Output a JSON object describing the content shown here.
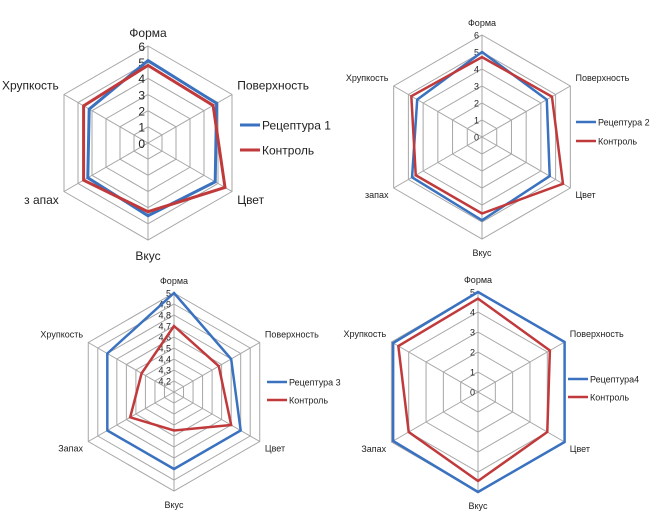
{
  "colors": {
    "series1": "#3a72c0",
    "series2": "#c0393b",
    "grid": "#a6a6a6"
  },
  "chart_data": [
    {
      "type": "radar",
      "axes": [
        "Форма",
        "Поверхность",
        "Цвет",
        "Вкус",
        "з апах",
        "Хрупкость"
      ],
      "ticks": [
        "0",
        "1",
        "2",
        "3",
        "4",
        "5",
        "6"
      ],
      "range": [
        0,
        6
      ],
      "grid": true,
      "legend_position": "right",
      "series": [
        {
          "name": "Рецептура 1",
          "values": [
            5.1,
            4.9,
            4.8,
            4.5,
            4.3,
            4.2
          ]
        },
        {
          "name": "Контроль",
          "values": [
            4.8,
            4.65,
            5.5,
            4.25,
            4.6,
            4.6
          ]
        }
      ]
    },
    {
      "type": "radar",
      "axes": [
        "Форма",
        "Поверхность",
        "Цвет",
        "Вкус",
        "запах",
        "Хрупкость"
      ],
      "ticks": [
        "0",
        "1",
        "2",
        "3",
        "4",
        "5",
        "6"
      ],
      "range": [
        0,
        6
      ],
      "grid": true,
      "legend_position": "right",
      "series": [
        {
          "name": "Рецептура 2",
          "values": [
            5.0,
            4.4,
            4.6,
            4.9,
            4.75,
            4.4
          ]
        },
        {
          "name": "Контроль",
          "values": [
            4.7,
            4.75,
            5.5,
            4.5,
            4.5,
            4.8
          ]
        }
      ]
    },
    {
      "type": "radar",
      "axes": [
        "Форма",
        "Поверхность",
        "Цвет",
        "Вкус",
        "Запах",
        "Хрупкость"
      ],
      "ticks": [
        "",
        "4,2",
        "4,3",
        "4,4",
        "4,5",
        "4,6",
        "4,7",
        "4,8",
        "4,9",
        "5"
      ],
      "range": [
        4.1,
        5.0
      ],
      "grid": true,
      "legend_position": "right",
      "series": [
        {
          "name": "Рецептура 3",
          "values": [
            5.0,
            4.7,
            4.8,
            4.8,
            4.8,
            4.8
          ]
        },
        {
          "name": "Контроль",
          "values": [
            4.7,
            4.57,
            4.7,
            4.45,
            4.56,
            4.44
          ]
        }
      ]
    },
    {
      "type": "radar",
      "axes": [
        "Форма",
        "Поверхность",
        "Цвет",
        "Вкус",
        "Запах",
        "Хрупкость"
      ],
      "ticks": [
        "0",
        "1",
        "2",
        "3",
        "4",
        "5"
      ],
      "range": [
        0,
        5
      ],
      "grid": true,
      "legend_position": "right",
      "series": [
        {
          "name": "Рецептура4",
          "values": [
            5.0,
            5.0,
            5.0,
            5.0,
            4.9,
            4.9
          ]
        },
        {
          "name": "Контроль",
          "values": [
            4.67,
            4.15,
            4.0,
            4.45,
            4.0,
            4.6
          ]
        }
      ]
    }
  ]
}
